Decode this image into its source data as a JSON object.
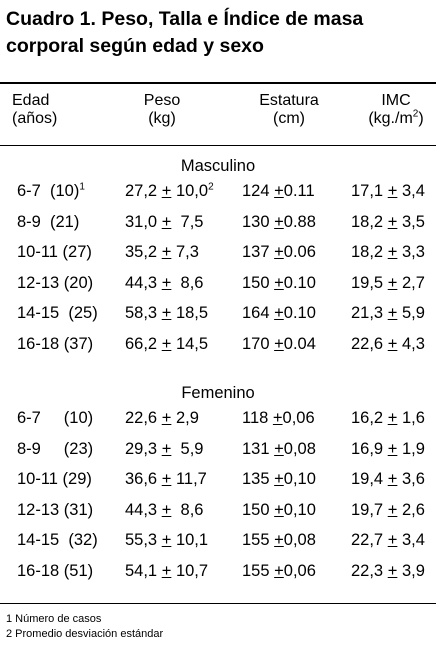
{
  "title_line1": "Cuadro  1. Peso, Talla e Índice de masa",
  "title_line2": "corporal según edad y sexo",
  "headers": {
    "edad": [
      "Edad",
      "(años)"
    ],
    "peso": [
      "Peso",
      "(kg)"
    ],
    "estatura": [
      "Estatura",
      "(cm)"
    ],
    "imc": [
      "IMC",
      "(kg./m",
      "2",
      ")"
    ]
  },
  "groups": [
    {
      "label": "Masculino",
      "rows": [
        {
          "edad": "6-7  (10)",
          "edad_sup": "1",
          "peso_mean": "27,2",
          "peso_sd": "10,0",
          "peso_sup": "2",
          "est_mean": "124",
          "est_sd": "0.11",
          "imc_mean": "17,1",
          "imc_sd": "3,4"
        },
        {
          "edad": "8-9  (21)",
          "edad_sup": "",
          "peso_mean": "31,0",
          "peso_sd": " 7,5",
          "peso_sup": "",
          "est_mean": "130",
          "est_sd": "0.88",
          "imc_mean": "18,2",
          "imc_sd": "3,5"
        },
        {
          "edad": "10-11 (27)",
          "edad_sup": "",
          "peso_mean": "35,2",
          "peso_sd": "7,3",
          "peso_sup": "",
          "est_mean": "137",
          "est_sd": "0.06",
          "imc_mean": "18,2",
          "imc_sd": "3,3"
        },
        {
          "edad": "12-13 (20)",
          "edad_sup": "",
          "peso_mean": "44,3",
          "peso_sd": " 8,6",
          "peso_sup": "",
          "est_mean": "150",
          "est_sd": "0.10",
          "imc_mean": "19,5",
          "imc_sd": "2,7"
        },
        {
          "edad": "14-15  (25)",
          "edad_sup": "",
          "peso_mean": "58,3",
          "peso_sd": "18,5",
          "peso_sup": "",
          "est_mean": "164",
          "est_sd": "0.10",
          "imc_mean": "21,3",
          "imc_sd": "5,9"
        },
        {
          "edad": "16-18 (37)",
          "edad_sup": "",
          "peso_mean": "66,2",
          "peso_sd": "14,5",
          "peso_sup": "",
          "est_mean": "170",
          "est_sd": "0.04",
          "imc_mean": "22,6",
          "imc_sd": "4,3"
        }
      ]
    },
    {
      "label": "Femenino",
      "rows": [
        {
          "edad": "6-7     (10)",
          "edad_sup": "",
          "peso_mean": "22,6",
          "peso_sd": "2,9",
          "peso_sup": "",
          "est_mean": "118",
          "est_sd": "0,06",
          "imc_mean": "16,2",
          "imc_sd": "1,6"
        },
        {
          "edad": "8-9     (23)",
          "edad_sup": "",
          "peso_mean": "29,3",
          "peso_sd": " 5,9",
          "peso_sup": "",
          "est_mean": "131",
          "est_sd": "0,08",
          "imc_mean": "16,9",
          "imc_sd": "1,9"
        },
        {
          "edad": "10-11 (29)",
          "edad_sup": "",
          "peso_mean": "36,6",
          "peso_sd": "11,7",
          "peso_sup": "",
          "est_mean": "135",
          "est_sd": "0,10",
          "imc_mean": "19,4",
          "imc_sd": "3,6"
        },
        {
          "edad": "12-13 (31)",
          "edad_sup": "",
          "peso_mean": "44,3",
          "peso_sd": " 8,6",
          "peso_sup": "",
          "est_mean": "150",
          "est_sd": "0,10",
          "imc_mean": "19,7",
          "imc_sd": "2,6"
        },
        {
          "edad": "14-15  (32)",
          "edad_sup": "",
          "peso_mean": "55,3",
          "peso_sd": "10,1",
          "peso_sup": "",
          "est_mean": "155",
          "est_sd": "0,08",
          "imc_mean": "22,7",
          "imc_sd": "3,4"
        },
        {
          "edad": "16-18 (51)",
          "edad_sup": "",
          "peso_mean": "54,1",
          "peso_sd": "10,7",
          "peso_sup": "",
          "est_mean": "155",
          "est_sd": "0,06",
          "imc_mean": "22,3",
          "imc_sd": "3,9"
        }
      ]
    }
  ],
  "pm_symbol": "+",
  "footnotes": [
    "1 Número de casos",
    "2 Promedio desviación estándar"
  ]
}
